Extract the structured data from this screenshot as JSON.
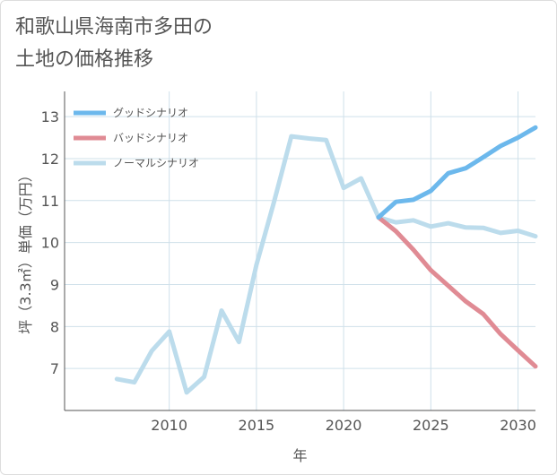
{
  "title_lines": [
    "和歌山県海南市多田の",
    "土地の価格推移"
  ],
  "chart_data": {
    "type": "line",
    "title": "和歌山県海南市多田の土地の価格推移",
    "xlabel": "年",
    "ylabel": "坪（3.3㎡）単価（万円）",
    "xlim": [
      2004,
      2031
    ],
    "ylim": [
      6,
      13.6
    ],
    "xticks": [
      2010,
      2015,
      2020,
      2025,
      2030
    ],
    "yticks": [
      7,
      8,
      9,
      10,
      11,
      12,
      13
    ],
    "grid": true,
    "legend_position": "top-left",
    "series": [
      {
        "name": "グッドシナリオ",
        "color": "#6cb8ec",
        "x": [
          2022,
          2023,
          2024,
          2025,
          2026,
          2027,
          2028,
          2029,
          2030,
          2031
        ],
        "values": [
          10.6,
          10.97,
          11.02,
          11.23,
          11.65,
          11.77,
          12.03,
          12.3,
          12.5,
          12.74
        ]
      },
      {
        "name": "バッドシナリオ",
        "color": "#e08b94",
        "x": [
          2022,
          2023,
          2024,
          2025,
          2026,
          2027,
          2028,
          2029,
          2030,
          2031
        ],
        "values": [
          10.6,
          10.27,
          9.83,
          9.34,
          8.97,
          8.6,
          8.3,
          7.82,
          7.43,
          7.05
        ]
      },
      {
        "name": "ノーマルシナリオ",
        "color": "#bcdcec",
        "x": [
          2007,
          2008,
          2009,
          2010,
          2011,
          2012,
          2013,
          2014,
          2015,
          2016,
          2017,
          2018,
          2019,
          2020,
          2021,
          2022,
          2023,
          2024,
          2025,
          2026,
          2027,
          2028,
          2029,
          2030,
          2031
        ],
        "values": [
          6.75,
          6.67,
          7.42,
          7.88,
          6.43,
          6.8,
          8.38,
          7.63,
          9.47,
          10.95,
          12.53,
          12.48,
          12.44,
          11.3,
          11.53,
          10.6,
          10.48,
          10.53,
          10.38,
          10.46,
          10.36,
          10.35,
          10.23,
          10.28,
          10.15
        ]
      }
    ]
  }
}
